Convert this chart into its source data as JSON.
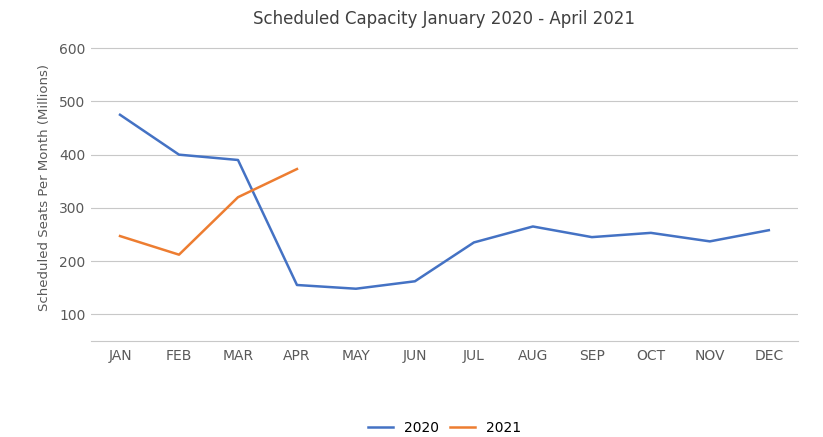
{
  "title": "Scheduled Capacity January 2020 - April 2021",
  "ylabel": "Scheduled Seats Per Month (Millions)",
  "months": [
    "JAN",
    "FEB",
    "MAR",
    "APR",
    "MAY",
    "JUN",
    "JUL",
    "AUG",
    "SEP",
    "OCT",
    "NOV",
    "DEC"
  ],
  "series_2020": [
    475,
    400,
    390,
    155,
    148,
    162,
    235,
    265,
    245,
    253,
    237,
    258
  ],
  "series_2021": [
    247,
    212,
    320,
    373,
    null,
    null,
    null,
    null,
    null,
    null,
    null,
    null
  ],
  "color_2020": "#4472C4",
  "color_2021": "#ED7D31",
  "ylim_min": 50,
  "ylim_max": 625,
  "yticks": [
    100,
    200,
    300,
    400,
    500,
    600
  ],
  "legend_2020": "2020",
  "legend_2021": "2021",
  "background_color": "#ffffff",
  "grid_color": "#c8c8c8",
  "title_fontsize": 12,
  "label_fontsize": 9.5,
  "tick_fontsize": 10,
  "legend_fontsize": 10,
  "linewidth": 1.8
}
